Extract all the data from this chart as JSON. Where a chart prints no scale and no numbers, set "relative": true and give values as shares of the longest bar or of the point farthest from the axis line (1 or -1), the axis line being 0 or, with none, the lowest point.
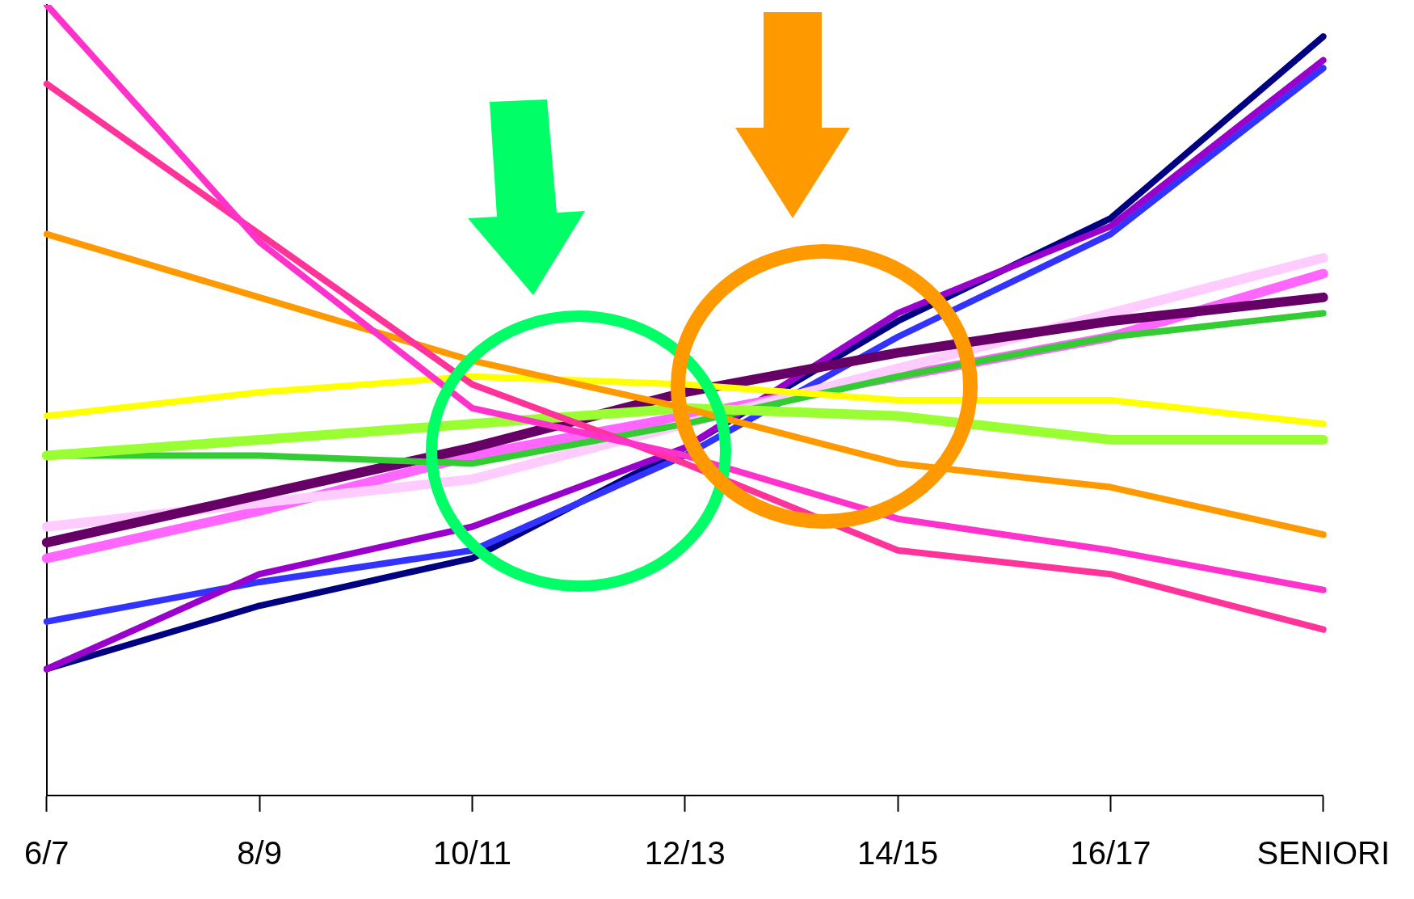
{
  "chart_data": {
    "type": "line",
    "relative": true,
    "categories": [
      "6/7",
      "8/9",
      "10/11",
      "12/13",
      "14/15",
      "16/17",
      "SENIORI"
    ],
    "series": [
      {
        "color": "#ff33cc",
        "values": [
          1.0,
          0.7,
          0.49,
          0.43,
          0.35,
          0.31,
          0.26
        ]
      },
      {
        "color": "#ff3399",
        "values": [
          0.9,
          0.71,
          0.52,
          0.42,
          0.31,
          0.28,
          0.21
        ]
      },
      {
        "color": "#ff9900",
        "values": [
          0.71,
          0.63,
          0.55,
          0.49,
          0.42,
          0.39,
          0.33
        ]
      },
      {
        "color": "#ffff00",
        "values": [
          0.48,
          0.51,
          0.53,
          0.52,
          0.5,
          0.5,
          0.47
        ]
      },
      {
        "color": "#99ff33",
        "values": [
          0.43,
          0.45,
          0.47,
          0.49,
          0.48,
          0.45,
          0.45
        ]
      },
      {
        "color": "#33cc33",
        "values": [
          0.43,
          0.43,
          0.42,
          0.47,
          0.53,
          0.58,
          0.61
        ]
      },
      {
        "color": "#660066",
        "values": [
          0.32,
          0.38,
          0.44,
          0.51,
          0.56,
          0.6,
          0.63
        ]
      },
      {
        "color": "#ffccff",
        "values": [
          0.34,
          0.37,
          0.4,
          0.47,
          0.54,
          0.61,
          0.68
        ]
      },
      {
        "color": "#ff66ff",
        "values": [
          0.3,
          0.36,
          0.43,
          0.48,
          0.53,
          0.58,
          0.66
        ]
      },
      {
        "color": "#9900cc",
        "values": [
          0.16,
          0.28,
          0.34,
          0.44,
          0.61,
          0.72,
          0.93
        ]
      },
      {
        "color": "#3333ff",
        "values": [
          0.22,
          0.27,
          0.31,
          0.43,
          0.58,
          0.71,
          0.92
        ]
      },
      {
        "color": "#000080",
        "values": [
          0.16,
          0.24,
          0.3,
          0.44,
          0.6,
          0.73,
          0.96
        ]
      }
    ]
  }
}
